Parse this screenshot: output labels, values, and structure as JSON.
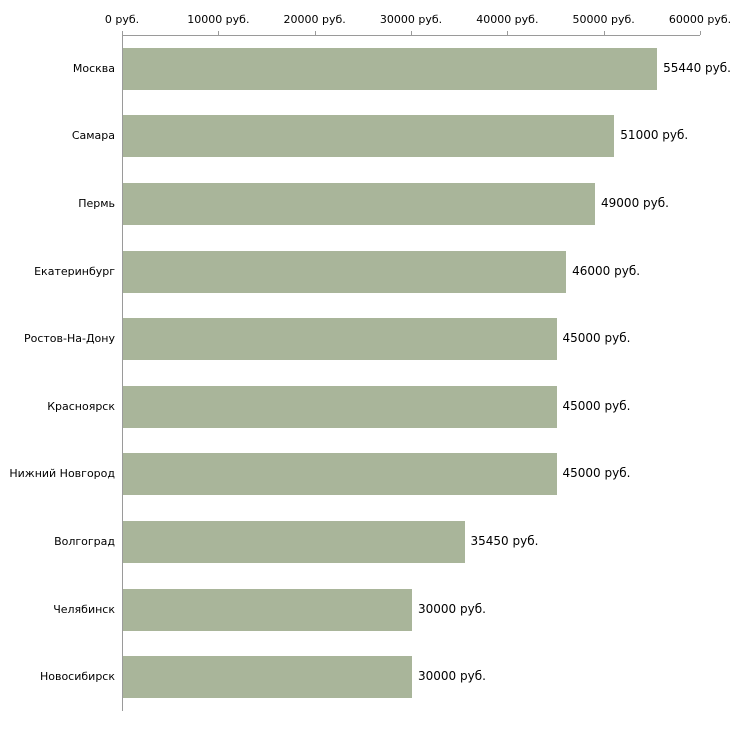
{
  "chart_data": {
    "type": "bar",
    "orientation": "horizontal",
    "title": "",
    "xlabel": "",
    "ylabel": "",
    "xlim": [
      0,
      60000
    ],
    "grid": false,
    "legend": "none",
    "bar_color": "#a9b59a",
    "axis_color": "#9a9a9a",
    "x_ticks": [
      0,
      10000,
      20000,
      30000,
      40000,
      50000,
      60000
    ],
    "x_tick_labels": [
      "0 руб.",
      "10000 руб.",
      "20000 руб.",
      "30000 руб.",
      "40000 руб.",
      "50000 руб.",
      "60000 руб."
    ],
    "categories": [
      "Москва",
      "Самара",
      "Пермь",
      "Екатеринбург",
      "Ростов-На-Дону",
      "Красноярск",
      "Нижний Новгород",
      "Волгоград",
      "Челябинск",
      "Новосибирск"
    ],
    "values": [
      55440,
      51000,
      49000,
      46000,
      45000,
      45000,
      45000,
      35450,
      30000,
      30000
    ],
    "value_labels": [
      "55440 руб.",
      "51000 руб.",
      "49000 руб.",
      "46000 руб.",
      "45000 руб.",
      "45000 руб.",
      "45000 руб.",
      "35450 руб.",
      "30000 руб.",
      "30000 руб."
    ]
  }
}
